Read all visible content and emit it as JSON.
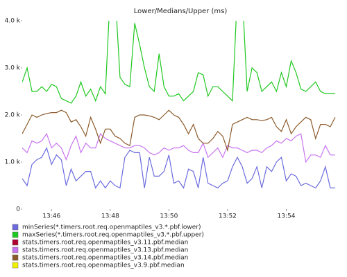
{
  "chart_data": {
    "type": "line",
    "title": "Lower/Medians/Upper (ms)",
    "x": [
      49500,
      49510,
      49520,
      49530,
      49540,
      49550,
      49560,
      49570,
      49580,
      49590,
      49600,
      49610,
      49620,
      49630,
      49640,
      49650,
      49660,
      49670,
      49680,
      49690,
      49700,
      49710,
      49720,
      49730,
      49740,
      49750,
      49760,
      49770,
      49780,
      49790,
      49800,
      49810,
      49820,
      49830,
      49840,
      49850,
      49860,
      49870,
      49880,
      49890,
      49900,
      49910,
      49920,
      49930,
      49940,
      49950,
      49960,
      49970,
      49980,
      49990,
      50000,
      50010,
      50020,
      50030,
      50040,
      50050,
      50060,
      50070,
      50080,
      50090,
      50100,
      50110,
      50120,
      50130,
      50140
    ],
    "xlim": [
      49500,
      50150
    ],
    "xticks": [
      {
        "value": 49560,
        "label": "13:46"
      },
      {
        "value": 49680,
        "label": "13:48"
      },
      {
        "value": 49800,
        "label": "13:50"
      },
      {
        "value": 49920,
        "label": "13:52"
      },
      {
        "value": 50040,
        "label": "13:54"
      }
    ],
    "ylim": [
      0,
      4000
    ],
    "yticks": [
      0,
      {
        "value": 1000,
        "label": "1.0 k"
      },
      {
        "value": 2000,
        "label": "2.0 k"
      },
      {
        "value": 3000,
        "label": "3.0 k"
      },
      {
        "value": 4000,
        "label": "4.0 k"
      }
    ],
    "series": [
      {
        "name": "minSeries(*.timers.root.req.openmaptiles_v3.*.pbf.lower)",
        "color": "#6b6bdf",
        "values": [
          650,
          500,
          950,
          1050,
          1100,
          1300,
          950,
          1150,
          1050,
          500,
          850,
          600,
          700,
          800,
          800,
          450,
          600,
          450,
          600,
          500,
          450,
          1100,
          1250,
          1200,
          1200,
          450,
          1100,
          700,
          700,
          800,
          1150,
          550,
          600,
          450,
          850,
          800,
          450,
          1100,
          550,
          500,
          450,
          550,
          600,
          900,
          1100,
          900,
          550,
          650,
          900,
          450,
          900,
          800,
          1000,
          1100,
          600,
          750,
          700,
          500,
          550,
          500,
          450,
          600,
          900,
          450,
          450
        ]
      },
      {
        "name": "maxSeries(*.timers.root.req.openmaptiles_v3.*.pbf.upper)",
        "color": "#1ec81e",
        "values": [
          2700,
          3000,
          2500,
          2500,
          2600,
          2500,
          2650,
          2600,
          2350,
          2300,
          2250,
          2400,
          2700,
          2400,
          2550,
          2300,
          2600,
          2450,
          4600,
          4600,
          2800,
          2650,
          2600,
          3950,
          3500,
          3000,
          2600,
          2500,
          3300,
          2600,
          2400,
          2400,
          2450,
          2300,
          2400,
          2500,
          2900,
          2850,
          2400,
          2600,
          2600,
          2500,
          2400,
          2300,
          4600,
          4600,
          2500,
          3000,
          2900,
          2500,
          2600,
          2700,
          2500,
          2900,
          2600,
          3150,
          2900,
          2550,
          2500,
          2600,
          2700,
          2500,
          2450,
          2450,
          2450
        ]
      },
      {
        "name": "stats.timers.root.req.openmaptiles_v3.11.pbf.median",
        "color": "#b00030",
        "values": [
          null,
          null,
          null,
          null,
          null,
          null,
          null,
          null,
          null,
          null,
          null,
          null,
          null,
          null,
          null,
          null,
          null,
          null,
          null,
          null,
          null,
          null,
          null,
          null,
          null,
          null,
          null,
          null,
          null,
          null,
          null,
          null,
          null,
          null,
          null,
          null,
          null,
          null,
          null,
          null,
          null,
          null,
          null,
          null,
          null,
          null,
          null,
          null,
          null,
          null,
          null,
          null,
          null,
          null,
          null,
          null,
          null,
          null,
          null,
          null,
          null,
          null,
          null,
          null,
          null
        ]
      },
      {
        "name": "stats.timers.root.req.openmaptiles_v3.13.pbf.median",
        "color": "#c873f0",
        "values": [
          1300,
          1200,
          1450,
          1400,
          1450,
          1600,
          1300,
          1400,
          1300,
          1050,
          1350,
          1550,
          1200,
          1400,
          1300,
          1300,
          1600,
          1500,
          1450,
          1400,
          1350,
          1300,
          1300,
          1350,
          1350,
          1300,
          1200,
          1150,
          1200,
          1300,
          1250,
          1300,
          1300,
          1350,
          1250,
          1200,
          1200,
          1400,
          1100,
          1200,
          1300,
          1100,
          1350,
          1300,
          1300,
          1250,
          1200,
          1250,
          1250,
          1200,
          1300,
          1350,
          1450,
          1400,
          1500,
          1450,
          1550,
          1600,
          1000,
          1150,
          1150,
          1100,
          1350,
          1150,
          1150
        ]
      },
      {
        "name": "stats.timers.root.req.openmaptiles_v3.14.pbf.median",
        "color": "#8b5a2b",
        "values": [
          1600,
          1800,
          2000,
          1950,
          2000,
          2030,
          2050,
          2050,
          2100,
          2050,
          1850,
          1900,
          1750,
          1550,
          1950,
          1700,
          1400,
          1700,
          1700,
          1550,
          1500,
          1400,
          1350,
          1950,
          2000,
          2000,
          1980,
          1950,
          1900,
          2000,
          2100,
          2000,
          1950,
          1800,
          1600,
          1800,
          1500,
          1400,
          1400,
          1500,
          1650,
          1550,
          1250,
          1800,
          1850,
          1900,
          1950,
          1900,
          1900,
          1880,
          1900,
          1950,
          1750,
          1650,
          1900,
          1600,
          1750,
          1850,
          1950,
          1900,
          1500,
          1800,
          1800,
          1750,
          1950
        ]
      },
      {
        "name": "stats.timers.root.req.openmaptiles_v3.9.pbf.median",
        "color": "#f0f000",
        "values": [
          null,
          null,
          null,
          null,
          null,
          null,
          null,
          null,
          null,
          null,
          null,
          null,
          null,
          null,
          null,
          null,
          null,
          null,
          null,
          null,
          null,
          null,
          null,
          null,
          null,
          null,
          null,
          null,
          null,
          null,
          null,
          null,
          null,
          null,
          null,
          null,
          null,
          null,
          null,
          null,
          null,
          null,
          null,
          null,
          null,
          null,
          null,
          null,
          null,
          null,
          null,
          null,
          null,
          null,
          null,
          null,
          null,
          null,
          null,
          null,
          null,
          null,
          null,
          null,
          null
        ]
      }
    ]
  }
}
